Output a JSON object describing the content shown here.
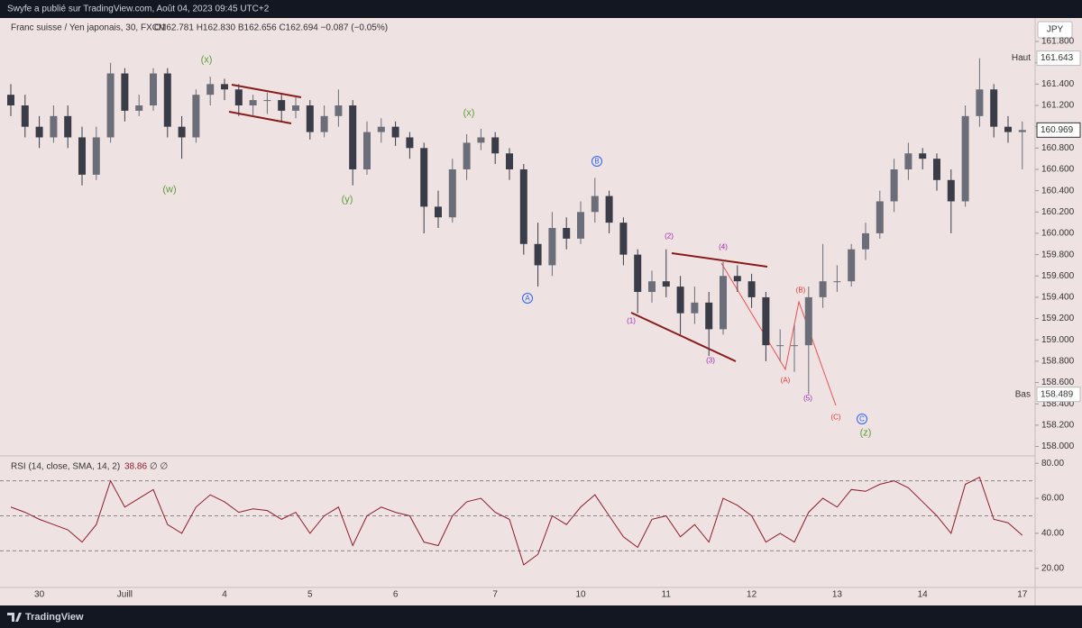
{
  "header": {
    "publisher": "Swyfe a publié sur TradingView.com, Août 04, 2023 09:45 UTC+2",
    "symbol": "Franc suisse / Yen japonais, 30, FXCM",
    "ohlc": "O162.781 H162.830 B162.656 C162.694 −0.087 (−0.05%)",
    "currency": "JPY"
  },
  "footer": {
    "brand": "TradingView"
  },
  "chart_data": [
    {
      "type": "candlestick",
      "categories": [
        null,
        null,
        "30",
        null,
        null,
        null,
        null,
        null,
        "Juill",
        null,
        null,
        null,
        null,
        null,
        null,
        "4",
        null,
        null,
        null,
        null,
        null,
        "5",
        null,
        null,
        null,
        null,
        null,
        "6",
        null,
        null,
        null,
        null,
        null,
        null,
        "7",
        null,
        null,
        null,
        null,
        null,
        "10",
        null,
        null,
        null,
        null,
        null,
        "11",
        null,
        null,
        null,
        null,
        null,
        "12",
        null,
        null,
        null,
        null,
        null,
        "13",
        null,
        null,
        null,
        null,
        null,
        "14",
        null,
        null,
        null,
        null,
        null,
        null,
        "17"
      ],
      "open": [
        161.3,
        161.2,
        161.0,
        160.9,
        161.1,
        160.9,
        160.55,
        160.9,
        161.5,
        161.15,
        161.2,
        161.5,
        161.0,
        160.9,
        161.3,
        161.4,
        161.35,
        161.2,
        161.25,
        161.25,
        161.15,
        161.2,
        160.95,
        161.1,
        161.2,
        160.6,
        160.95,
        161.0,
        160.9,
        160.8,
        160.25,
        160.15,
        160.6,
        160.85,
        160.9,
        160.75,
        160.6,
        159.9,
        159.7,
        160.05,
        159.95,
        160.2,
        160.35,
        160.1,
        159.8,
        159.45,
        159.55,
        159.5,
        159.25,
        159.35,
        159.1,
        159.6,
        159.55,
        159.4,
        158.95,
        158.95,
        158.95,
        159.4,
        159.55,
        159.55,
        159.85,
        160.0,
        160.3,
        160.6,
        160.75,
        160.7,
        160.5,
        160.3,
        161.1,
        161.35,
        161.0,
        160.95
      ],
      "high": [
        161.4,
        161.3,
        161.1,
        161.2,
        161.2,
        161.0,
        161.0,
        161.6,
        161.55,
        161.3,
        161.55,
        161.55,
        161.1,
        161.35,
        161.47,
        161.45,
        161.4,
        161.3,
        161.32,
        161.3,
        161.28,
        161.25,
        161.2,
        161.35,
        161.25,
        161.05,
        161.08,
        161.05,
        160.95,
        160.85,
        160.4,
        160.7,
        160.93,
        160.98,
        160.95,
        160.8,
        160.65,
        160.1,
        160.2,
        160.15,
        160.3,
        160.52,
        160.4,
        160.15,
        159.85,
        159.65,
        159.85,
        159.6,
        159.5,
        159.45,
        159.75,
        159.7,
        159.62,
        159.45,
        159.1,
        159.15,
        159.5,
        159.9,
        159.7,
        159.9,
        160.1,
        160.4,
        160.7,
        160.85,
        160.8,
        160.75,
        160.6,
        161.2,
        161.643,
        161.4,
        161.1,
        161.05
      ],
      "low": [
        161.1,
        160.9,
        160.8,
        160.85,
        160.8,
        160.45,
        160.5,
        160.85,
        161.05,
        161.1,
        161.15,
        160.9,
        160.7,
        160.85,
        161.2,
        161.25,
        161.1,
        161.1,
        161.12,
        161.05,
        161.08,
        160.88,
        160.9,
        161.0,
        160.45,
        160.55,
        160.85,
        160.82,
        160.7,
        160.0,
        160.05,
        160.1,
        160.5,
        160.78,
        160.65,
        160.5,
        159.8,
        159.5,
        159.6,
        159.85,
        159.9,
        160.1,
        160.0,
        159.7,
        159.25,
        159.35,
        159.4,
        159.05,
        159.15,
        158.85,
        159.05,
        159.45,
        159.3,
        158.8,
        158.8,
        158.7,
        158.489,
        159.3,
        159.45,
        159.5,
        159.75,
        159.95,
        160.2,
        160.5,
        160.6,
        160.4,
        160.0,
        160.25,
        161.0,
        160.9,
        160.85,
        160.6
      ],
      "close": [
        161.2,
        161.0,
        160.9,
        161.1,
        160.9,
        160.55,
        160.9,
        161.5,
        161.15,
        161.2,
        161.5,
        161.0,
        160.9,
        161.3,
        161.4,
        161.35,
        161.2,
        161.25,
        161.25,
        161.15,
        161.2,
        160.95,
        161.1,
        161.2,
        160.6,
        160.95,
        161.0,
        160.9,
        160.8,
        160.25,
        160.15,
        160.6,
        160.85,
        160.9,
        160.75,
        160.6,
        159.9,
        159.7,
        160.05,
        159.95,
        160.2,
        160.35,
        160.1,
        159.8,
        159.45,
        159.55,
        159.5,
        159.25,
        159.35,
        159.1,
        159.6,
        159.55,
        159.4,
        158.95,
        158.95,
        158.95,
        159.4,
        159.55,
        159.55,
        159.85,
        160.0,
        160.3,
        160.6,
        160.75,
        160.7,
        160.5,
        160.3,
        161.1,
        161.35,
        161.0,
        160.95,
        160.969
      ],
      "up_color": "#6b6e78",
      "down_color": "#3a3d47",
      "ylim": [
        157.92,
        162.02
      ],
      "yticks": [
        {
          "value": 158.0,
          "label": "158.000"
        },
        {
          "value": 158.2,
          "label": "158.200"
        },
        {
          "value": 158.4,
          "label": "158.400"
        },
        {
          "value": 158.6,
          "label": "158.600"
        },
        {
          "value": 158.8,
          "label": "158.800"
        },
        {
          "value": 159.0,
          "label": "159.000"
        },
        {
          "value": 159.2,
          "label": "159.200"
        },
        {
          "value": 159.4,
          "label": "159.400"
        },
        {
          "value": 159.6,
          "label": "159.600"
        },
        {
          "value": 159.8,
          "label": "159.800"
        },
        {
          "value": 160.0,
          "label": "160.000"
        },
        {
          "value": 160.2,
          "label": "160.200"
        },
        {
          "value": 160.4,
          "label": "160.400"
        },
        {
          "value": 160.6,
          "label": "160.600"
        },
        {
          "value": 160.8,
          "label": "160.800"
        },
        {
          "value": 161.0,
          "label": "161.000"
        },
        {
          "value": 161.2,
          "label": "161.200"
        },
        {
          "value": 161.4,
          "label": "161.400"
        },
        {
          "value": 161.6,
          "label": "161.600"
        },
        {
          "value": 161.8,
          "label": "161.800"
        }
      ],
      "grid": false,
      "last_price": 160.969,
      "high_marker": {
        "label": "Haut",
        "value": 161.643
      },
      "low_marker": {
        "label": "Bas",
        "value": 158.489
      },
      "annotations": [
        {
          "text": "(x)",
          "color": "#5b9e3a"
        },
        {
          "text": "(w)",
          "color": "#5b9e3a"
        },
        {
          "text": "(y)",
          "color": "#5b9e3a"
        },
        {
          "text": "(x)",
          "color": "#5b9e3a"
        },
        {
          "text": "(z)",
          "color": "#5b9e3a"
        },
        {
          "text": "A",
          "color": "#2962ff",
          "circled": true
        },
        {
          "text": "B",
          "color": "#2962ff",
          "circled": true
        },
        {
          "text": "C",
          "color": "#2962ff",
          "circled": true
        },
        {
          "text": "(1)",
          "color": "#9c27b0"
        },
        {
          "text": "(2)",
          "color": "#9c27b0"
        },
        {
          "text": "(3)",
          "color": "#9c27b0"
        },
        {
          "text": "(4)",
          "color": "#9c27b0"
        },
        {
          "text": "(5)",
          "color": "#9c27b0"
        },
        {
          "text": "(A)",
          "color": "#e53935"
        },
        {
          "text": "(B)",
          "color": "#e53935"
        },
        {
          "text": "(C)",
          "color": "#e53935"
        }
      ]
    },
    {
      "type": "line",
      "title": "RSI (14, close, SMA, 14, 2)",
      "extra": "∅ ∅",
      "series": [
        {
          "name": "RSI",
          "color": "#8e1c2a",
          "values": [
            55,
            52,
            48,
            45,
            42,
            35,
            45,
            70,
            55,
            60,
            65,
            45,
            40,
            55,
            62,
            58,
            52,
            54,
            53,
            48,
            52,
            40,
            50,
            55,
            33,
            50,
            55,
            52,
            50,
            35,
            33,
            50,
            58,
            60,
            52,
            48,
            22,
            28,
            50,
            45,
            55,
            62,
            50,
            38,
            32,
            48,
            50,
            38,
            45,
            35,
            60,
            56,
            50,
            35,
            40,
            35,
            52,
            60,
            55,
            65,
            64,
            68,
            70,
            66,
            58,
            50,
            40,
            68,
            72,
            48,
            46,
            38.86
          ]
        }
      ],
      "ylim": [
        9.6,
        83.7
      ],
      "yticks": [
        {
          "value": 20,
          "label": "20.00"
        },
        {
          "value": 40,
          "label": "40.00"
        },
        {
          "value": 60,
          "label": "60.00"
        },
        {
          "value": 80,
          "label": "80.00"
        }
      ],
      "bands": [
        30,
        50,
        70
      ]
    }
  ]
}
